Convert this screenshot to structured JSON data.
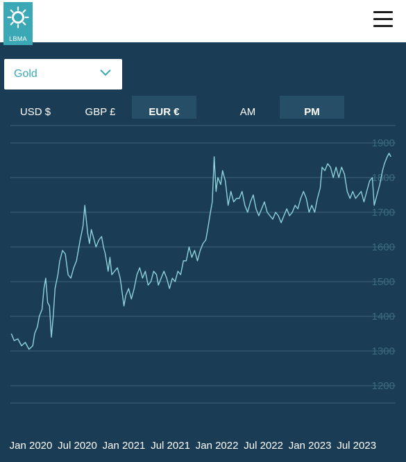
{
  "header": {
    "logo_text": "LBMA",
    "menu_icon": "hamburger-menu-icon"
  },
  "metal_select": {
    "selected": "Gold",
    "icon": "chevron-down-icon"
  },
  "currency_tabs": [
    {
      "label": "USD $",
      "active": false
    },
    {
      "label": "GBP £",
      "active": false
    },
    {
      "label": "EUR €",
      "active": true
    }
  ],
  "session_tabs": [
    {
      "label": "AM",
      "active": false
    },
    {
      "label": "PM",
      "active": true
    }
  ],
  "colors": {
    "background": "#1a3d55",
    "line": "#8fd3dd",
    "grid": "#3e6479",
    "accent": "#3aa8b5",
    "active_tab": "#264e66"
  },
  "chart_data": {
    "type": "line",
    "title": "",
    "xlabel": "",
    "ylabel": "",
    "ylim": [
      1150,
      1950
    ],
    "yticks": [
      1200,
      1300,
      1400,
      1500,
      1600,
      1700,
      1800,
      1900
    ],
    "x_tick_labels": [
      "Jan 2020",
      "Jul 2020",
      "Jan 2021",
      "Jul 2021",
      "Jan 2022",
      "Jul 2022",
      "Jan 2023",
      "Jul 2023"
    ],
    "x_tick_positions": [
      2020.0,
      2020.5,
      2021.0,
      2021.5,
      2022.0,
      2022.5,
      2023.0,
      2023.5
    ],
    "xlim": [
      2019.78,
      2023.92
    ],
    "series": [
      {
        "name": "",
        "points": [
          [
            2019.79,
            1350
          ],
          [
            2019.82,
            1330
          ],
          [
            2019.86,
            1335
          ],
          [
            2019.9,
            1315
          ],
          [
            2019.94,
            1325
          ],
          [
            2019.98,
            1305
          ],
          [
            2020.02,
            1315
          ],
          [
            2020.04,
            1350
          ],
          [
            2020.07,
            1370
          ],
          [
            2020.09,
            1400
          ],
          [
            2020.12,
            1420
          ],
          [
            2020.14,
            1480
          ],
          [
            2020.16,
            1510
          ],
          [
            2020.18,
            1440
          ],
          [
            2020.2,
            1430
          ],
          [
            2020.22,
            1340
          ],
          [
            2020.24,
            1400
          ],
          [
            2020.26,
            1480
          ],
          [
            2020.29,
            1520
          ],
          [
            2020.31,
            1560
          ],
          [
            2020.34,
            1590
          ],
          [
            2020.37,
            1580
          ],
          [
            2020.4,
            1520
          ],
          [
            2020.43,
            1510
          ],
          [
            2020.46,
            1540
          ],
          [
            2020.49,
            1560
          ],
          [
            2020.53,
            1620
          ],
          [
            2020.56,
            1660
          ],
          [
            2020.58,
            1720
          ],
          [
            2020.61,
            1640
          ],
          [
            2020.63,
            1610
          ],
          [
            2020.65,
            1650
          ],
          [
            2020.68,
            1620
          ],
          [
            2020.7,
            1600
          ],
          [
            2020.73,
            1620
          ],
          [
            2020.76,
            1630
          ],
          [
            2020.78,
            1600
          ],
          [
            2020.8,
            1580
          ],
          [
            2020.83,
            1530
          ],
          [
            2020.85,
            1570
          ],
          [
            2020.87,
            1520
          ],
          [
            2020.9,
            1530
          ],
          [
            2020.93,
            1540
          ],
          [
            2020.96,
            1510
          ],
          [
            2020.98,
            1470
          ],
          [
            2021.0,
            1430
          ],
          [
            2021.02,
            1460
          ],
          [
            2021.05,
            1480
          ],
          [
            2021.08,
            1450
          ],
          [
            2021.11,
            1480
          ],
          [
            2021.14,
            1520
          ],
          [
            2021.17,
            1540
          ],
          [
            2021.2,
            1510
          ],
          [
            2021.23,
            1530
          ],
          [
            2021.26,
            1490
          ],
          [
            2021.29,
            1500
          ],
          [
            2021.32,
            1530
          ],
          [
            2021.35,
            1520
          ],
          [
            2021.37,
            1490
          ],
          [
            2021.4,
            1510
          ],
          [
            2021.43,
            1530
          ],
          [
            2021.46,
            1510
          ],
          [
            2021.49,
            1480
          ],
          [
            2021.52,
            1510
          ],
          [
            2021.55,
            1500
          ],
          [
            2021.58,
            1530
          ],
          [
            2021.61,
            1520
          ],
          [
            2021.64,
            1560
          ],
          [
            2021.67,
            1560
          ],
          [
            2021.7,
            1600
          ],
          [
            2021.73,
            1570
          ],
          [
            2021.76,
            1590
          ],
          [
            2021.79,
            1560
          ],
          [
            2021.82,
            1590
          ],
          [
            2021.85,
            1610
          ],
          [
            2021.88,
            1620
          ],
          [
            2021.9,
            1650
          ],
          [
            2021.93,
            1700
          ],
          [
            2021.95,
            1730
          ],
          [
            2021.97,
            1860
          ],
          [
            2021.99,
            1760
          ],
          [
            2022.01,
            1800
          ],
          [
            2022.04,
            1780
          ],
          [
            2022.06,
            1820
          ],
          [
            2022.09,
            1790
          ],
          [
            2022.12,
            1720
          ],
          [
            2022.15,
            1760
          ],
          [
            2022.18,
            1730
          ],
          [
            2022.21,
            1740
          ],
          [
            2022.24,
            1740
          ],
          [
            2022.27,
            1760
          ],
          [
            2022.3,
            1720
          ],
          [
            2022.33,
            1700
          ],
          [
            2022.36,
            1730
          ],
          [
            2022.39,
            1750
          ],
          [
            2022.42,
            1710
          ],
          [
            2022.45,
            1690
          ],
          [
            2022.48,
            1710
          ],
          [
            2022.51,
            1730
          ],
          [
            2022.54,
            1700
          ],
          [
            2022.57,
            1690
          ],
          [
            2022.6,
            1680
          ],
          [
            2022.63,
            1700
          ],
          [
            2022.66,
            1690
          ],
          [
            2022.69,
            1670
          ],
          [
            2022.72,
            1690
          ],
          [
            2022.75,
            1710
          ],
          [
            2022.78,
            1690
          ],
          [
            2022.81,
            1700
          ],
          [
            2022.84,
            1720
          ],
          [
            2022.87,
            1710
          ],
          [
            2022.9,
            1740
          ],
          [
            2022.93,
            1760
          ],
          [
            2022.96,
            1740
          ],
          [
            2022.99,
            1700
          ],
          [
            2023.02,
            1720
          ],
          [
            2023.05,
            1700
          ],
          [
            2023.08,
            1740
          ],
          [
            2023.11,
            1770
          ],
          [
            2023.13,
            1830
          ],
          [
            2023.16,
            1820
          ],
          [
            2023.19,
            1840
          ],
          [
            2023.22,
            1830
          ],
          [
            2023.25,
            1800
          ],
          [
            2023.28,
            1830
          ],
          [
            2023.31,
            1800
          ],
          [
            2023.34,
            1830
          ],
          [
            2023.37,
            1810
          ],
          [
            2023.4,
            1760
          ],
          [
            2023.43,
            1740
          ],
          [
            2023.46,
            1760
          ],
          [
            2023.49,
            1740
          ],
          [
            2023.52,
            1750
          ],
          [
            2023.55,
            1760
          ],
          [
            2023.58,
            1730
          ],
          [
            2023.61,
            1760
          ],
          [
            2023.64,
            1790
          ],
          [
            2023.67,
            1800
          ],
          [
            2023.69,
            1720
          ],
          [
            2023.72,
            1750
          ],
          [
            2023.75,
            1780
          ],
          [
            2023.78,
            1820
          ],
          [
            2023.8,
            1840
          ],
          [
            2023.83,
            1860
          ],
          [
            2023.85,
            1870
          ],
          [
            2023.87,
            1860
          ]
        ]
      }
    ]
  }
}
